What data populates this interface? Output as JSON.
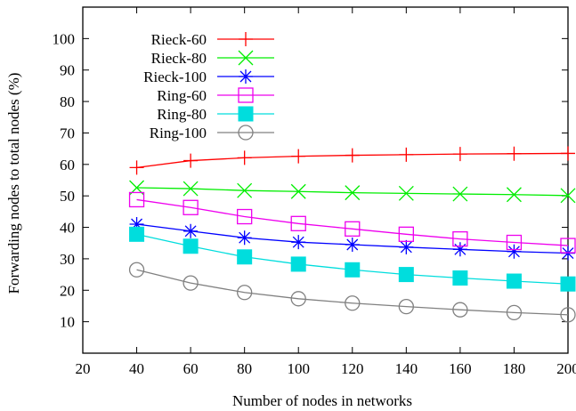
{
  "chart_data": {
    "type": "line",
    "title": "",
    "xlabel": "Number of nodes in networks",
    "ylabel": "Forwarding nodes to total nodes (%)",
    "xlim": [
      20,
      200
    ],
    "ylim": [
      0,
      110
    ],
    "xticks": [
      20,
      40,
      60,
      80,
      100,
      120,
      140,
      160,
      180,
      200
    ],
    "yticks": [
      10,
      20,
      30,
      40,
      50,
      60,
      70,
      80,
      90,
      100
    ],
    "grid": false,
    "legend_position": "top-left",
    "x": [
      40,
      60,
      80,
      100,
      120,
      140,
      160,
      180,
      200
    ],
    "series": [
      {
        "name": "Rieck-60",
        "color": "#ff0000",
        "marker": "plus",
        "values": [
          59,
          61.2,
          62.1,
          62.6,
          62.9,
          63.1,
          63.3,
          63.4,
          63.5
        ]
      },
      {
        "name": "Rieck-80",
        "color": "#00ee00",
        "marker": "cross",
        "values": [
          52.6,
          52.3,
          51.7,
          51.4,
          51.0,
          50.8,
          50.6,
          50.4,
          50.1
        ]
      },
      {
        "name": "Rieck-100",
        "color": "#0000ff",
        "marker": "star",
        "values": [
          41,
          38.8,
          36.7,
          35.3,
          34.5,
          33.7,
          33.0,
          32.3,
          31.8
        ]
      },
      {
        "name": "Ring-60",
        "color": "#ee00ee",
        "marker": "open-square",
        "values": [
          48.8,
          46.3,
          43.4,
          41.2,
          39.5,
          37.8,
          36.3,
          35.2,
          34.2
        ]
      },
      {
        "name": "Ring-80",
        "color": "#00dddd",
        "marker": "filled-square",
        "values": [
          37.8,
          34.0,
          30.6,
          28.3,
          26.5,
          25.0,
          23.9,
          22.9,
          22.0
        ]
      },
      {
        "name": "Ring-100",
        "color": "#808080",
        "marker": "open-circle",
        "values": [
          26.5,
          22.3,
          19.3,
          17.3,
          15.9,
          14.8,
          13.8,
          12.9,
          12.2
        ]
      }
    ]
  }
}
